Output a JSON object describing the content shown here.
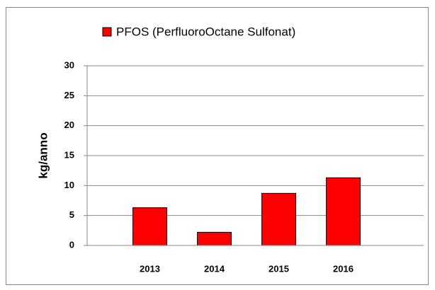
{
  "chart_data": {
    "type": "bar",
    "categories": [
      "2013",
      "2014",
      "2015",
      "2016"
    ],
    "series": [
      {
        "name": "PFOS (PerfluoroOctane Sulfonat)",
        "color": "#ff0000",
        "values": [
          6.3,
          2.2,
          8.7,
          11.3
        ]
      }
    ],
    "y_label": "kg/anno",
    "ylim": [
      0,
      30
    ],
    "yticks": [
      0,
      5,
      10,
      15,
      20,
      25,
      30
    ],
    "grid": true,
    "legend": "top"
  }
}
